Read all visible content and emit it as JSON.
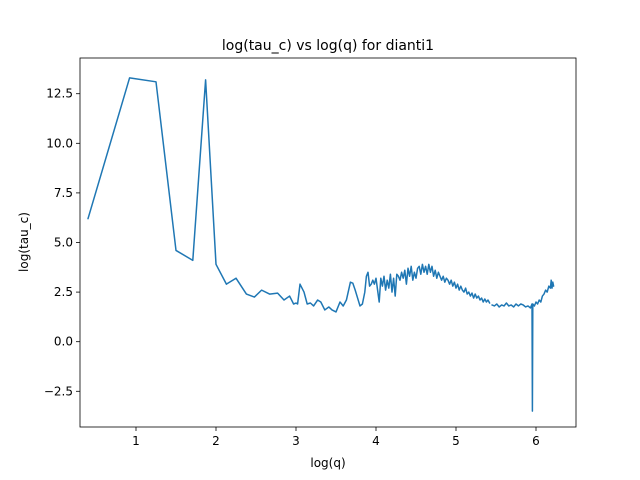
{
  "chart_data": {
    "type": "line",
    "title": "log(tau_c) vs log(q) for dianti1",
    "xlabel": "log(q)",
    "ylabel": "log(tau_c)",
    "xlim": [
      0.3,
      6.5
    ],
    "ylim": [
      -4.3,
      14.3
    ],
    "xticks": [
      1,
      2,
      3,
      4,
      5,
      6
    ],
    "xtick_labels": [
      "1",
      "2",
      "3",
      "4",
      "5",
      "6"
    ],
    "yticks": [
      -2.5,
      0.0,
      2.5,
      5.0,
      7.5,
      10.0,
      12.5
    ],
    "ytick_labels": [
      "−2.5",
      "0.0",
      "2.5",
      "5.0",
      "7.5",
      "10.0",
      "12.5"
    ],
    "grid": false,
    "series_color": "#1f77b4",
    "series": [
      {
        "x": [
          0.4,
          0.92,
          1.25,
          1.5,
          1.71,
          1.87,
          2.0,
          2.13,
          2.25,
          2.38,
          2.48,
          2.57,
          2.67,
          2.77,
          2.85,
          2.92,
          2.97,
          3.0,
          3.02,
          3.05,
          3.1,
          3.14,
          3.18,
          3.22,
          3.27,
          3.31,
          3.36,
          3.41,
          3.45,
          3.5,
          3.55,
          3.59,
          3.63,
          3.68,
          3.71,
          3.74,
          3.77,
          3.8,
          3.83,
          3.86,
          3.88,
          3.9,
          3.92,
          3.94,
          3.96,
          3.98,
          4.0,
          4.02,
          4.04,
          4.06,
          4.08,
          4.1,
          4.12,
          4.14,
          4.16,
          4.18,
          4.2,
          4.22,
          4.24,
          4.26,
          4.28,
          4.3,
          4.32,
          4.34,
          4.36,
          4.38,
          4.4,
          4.42,
          4.44,
          4.46,
          4.48,
          4.5,
          4.52,
          4.54,
          4.56,
          4.58,
          4.6,
          4.62,
          4.64,
          4.66,
          4.68,
          4.7,
          4.72,
          4.74,
          4.76,
          4.78,
          4.8,
          4.82,
          4.84,
          4.86,
          4.88,
          4.9,
          4.92,
          4.94,
          4.96,
          4.98,
          5.0,
          5.02,
          5.04,
          5.06,
          5.08,
          5.1,
          5.12,
          5.14,
          5.16,
          5.18,
          5.2,
          5.22,
          5.24,
          5.26,
          5.28,
          5.3,
          5.32,
          5.34,
          5.36,
          5.38,
          5.4,
          5.42
        ],
        "y": [
          6.2,
          13.3,
          13.1,
          4.6,
          4.1,
          13.2,
          3.9,
          2.9,
          3.2,
          2.4,
          2.25,
          2.6,
          2.4,
          2.45,
          2.1,
          2.3,
          1.9,
          1.95,
          1.9,
          2.9,
          2.5,
          1.9,
          1.95,
          1.8,
          2.1,
          2.0,
          1.6,
          1.75,
          1.6,
          1.5,
          2.0,
          1.8,
          2.1,
          3.0,
          2.95,
          2.6,
          2.2,
          1.8,
          1.9,
          2.5,
          3.3,
          3.5,
          2.8,
          2.9,
          3.1,
          2.9,
          3.2,
          2.6,
          2.0,
          3.2,
          2.8,
          3.3,
          2.6,
          3.1,
          2.7,
          3.4,
          2.5,
          3.2,
          2.3,
          3.4,
          3.3,
          3.1,
          3.5,
          3.2,
          3.6,
          2.9,
          3.7,
          3.3,
          3.8,
          3.1,
          3.5,
          3.2,
          3.7,
          3.8,
          3.4,
          3.9,
          3.5,
          3.8,
          3.4,
          3.9,
          3.5,
          3.8,
          3.3,
          3.6,
          3.2,
          3.5,
          3.3,
          3.1,
          3.3,
          3.0,
          3.2,
          3.1,
          2.9,
          3.1,
          2.8,
          3.0,
          2.7,
          2.9,
          2.6,
          2.8,
          2.6,
          2.5,
          2.7,
          2.4,
          2.5,
          2.3,
          2.45,
          2.2,
          2.4,
          2.2,
          2.3,
          2.1,
          2.2,
          2.0,
          2.15,
          2.0,
          2.1,
          1.95
        ]
      },
      {
        "x": [
          5.45,
          5.48,
          5.51,
          5.54,
          5.57,
          5.6,
          5.63,
          5.66,
          5.69,
          5.72,
          5.75,
          5.78,
          5.81,
          5.84,
          5.87,
          5.9,
          5.93,
          5.95,
          5.955,
          5.96,
          5.98,
          6.0,
          6.02,
          6.04,
          6.06,
          6.08,
          6.1,
          6.12,
          6.14,
          6.16,
          6.18,
          6.19,
          6.2,
          6.21,
          6.22
        ],
        "y": [
          1.85,
          1.8,
          1.9,
          1.75,
          1.85,
          1.8,
          1.95,
          1.8,
          1.85,
          1.75,
          1.9,
          1.8,
          1.9,
          1.85,
          1.75,
          1.8,
          1.7,
          1.9,
          -3.5,
          1.9,
          1.8,
          2.0,
          1.9,
          2.1,
          2.0,
          2.3,
          2.4,
          2.6,
          2.5,
          2.8,
          2.7,
          3.1,
          2.7,
          3.0,
          2.8
        ]
      }
    ]
  }
}
